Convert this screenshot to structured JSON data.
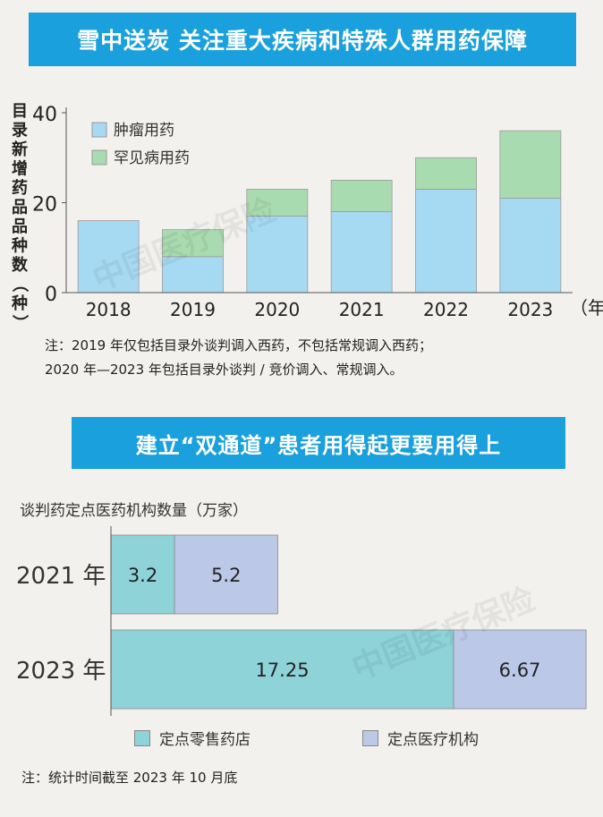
{
  "section1": {
    "banner": "雪中送炭 关注重大疾病和特殊人群用药保障",
    "note_line1": "注：2019 年仅包括目录外谈判调入西药，不包括常规调入西药；",
    "note_line2": "2020 年—2023 年包括目录外谈判 / 竞价调入、常规调入。"
  },
  "section2": {
    "banner": "建立“双通道”患者用得起更要用得上",
    "note": "注：统计时间截至 2023 年 10 月底"
  },
  "watermark": "中国医疗保险",
  "colors": {
    "tumor": "#a6daf2",
    "rare": "#a9dbb0",
    "retail": "#8dd3d8",
    "medical": "#bcc8e8",
    "banner": "#1aa0dc"
  },
  "chart_data": [
    {
      "type": "bar",
      "stacked": true,
      "categories": [
        "2018",
        "2019",
        "2020",
        "2021",
        "2022",
        "2023"
      ],
      "x_unit": "（年）",
      "ylabel": "目录新增药品品种数（种）",
      "ylim": [
        0,
        40
      ],
      "yticks": [
        "0",
        "20",
        "40"
      ],
      "legend": "top-left",
      "series": [
        {
          "name": "肿瘤用药",
          "values": [
            16,
            8,
            17,
            18,
            23,
            21
          ]
        },
        {
          "name": "罕见病用药",
          "values": [
            0,
            6,
            6,
            7,
            7,
            15
          ]
        }
      ]
    },
    {
      "type": "bar",
      "orientation": "horizontal",
      "stacked": true,
      "title": "谈判药定点医药机构数量（万家）",
      "categories": [
        "2021 年",
        "2023 年"
      ],
      "legend": "bottom",
      "series": [
        {
          "name": "定点零售药店",
          "values": [
            3.2,
            17.25
          ],
          "labels": [
            "3.2",
            "17.25"
          ]
        },
        {
          "name": "定点医疗机构",
          "values": [
            5.2,
            6.67
          ],
          "labels": [
            "5.2",
            "6.67"
          ]
        }
      ]
    }
  ]
}
